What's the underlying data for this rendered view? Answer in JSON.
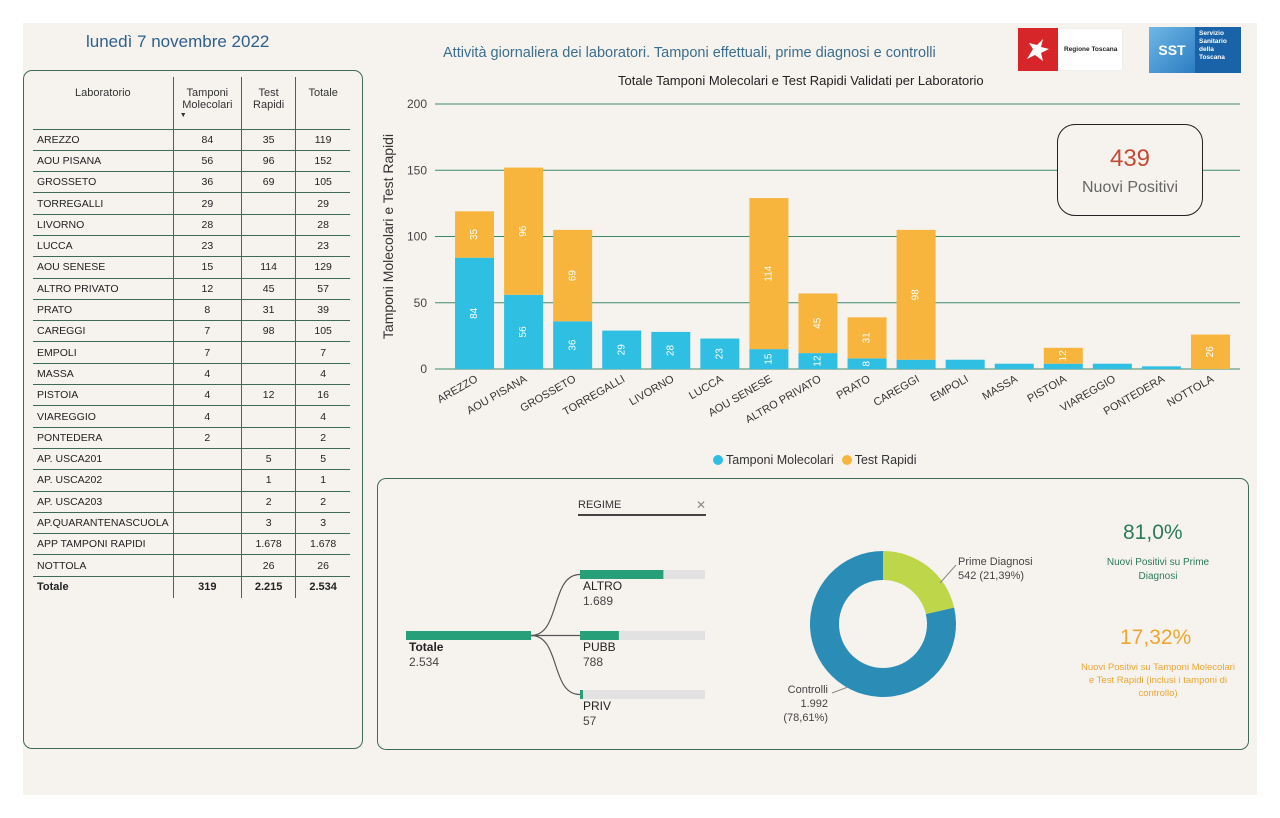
{
  "header": {
    "date": "lunedì 7 novembre 2022",
    "title": "Attività giornaliera dei laboratori. Tamponi effettuali, prime diagnosi e controlli",
    "logo_rt": "Regione Toscana",
    "logo_sst_short": "SST",
    "logo_sst_lines": [
      "Servizio",
      "Sanitario",
      "della",
      "Toscana"
    ]
  },
  "colors": {
    "molecolari": "#2ebfe3",
    "rapidi": "#f7b53d",
    "accent": "#3d6b57",
    "kpi": "#c44a35"
  },
  "table": {
    "headers": {
      "lab": "Laboratorio",
      "mol": "Tamponi Molecolari",
      "rap": "Test Rapidi",
      "tot": "Totale"
    },
    "rows": [
      [
        "AREZZO",
        "84",
        "35",
        "119"
      ],
      [
        "AOU PISANA",
        "56",
        "96",
        "152"
      ],
      [
        "GROSSETO",
        "36",
        "69",
        "105"
      ],
      [
        "TORREGALLI",
        "29",
        "",
        "29"
      ],
      [
        "LIVORNO",
        "28",
        "",
        "28"
      ],
      [
        "LUCCA",
        "23",
        "",
        "23"
      ],
      [
        "AOU SENESE",
        "15",
        "114",
        "129"
      ],
      [
        "ALTRO PRIVATO",
        "12",
        "45",
        "57"
      ],
      [
        "PRATO",
        "8",
        "31",
        "39"
      ],
      [
        "CAREGGI",
        "7",
        "98",
        "105"
      ],
      [
        "EMPOLI",
        "7",
        "",
        "7"
      ],
      [
        "MASSA",
        "4",
        "",
        "4"
      ],
      [
        "PISTOIA",
        "4",
        "12",
        "16"
      ],
      [
        "VIAREGGIO",
        "4",
        "",
        "4"
      ],
      [
        "PONTEDERA",
        "2",
        "",
        "2"
      ],
      [
        "AP. USCA201",
        "",
        "5",
        "5"
      ],
      [
        "AP. USCA202",
        "",
        "1",
        "1"
      ],
      [
        "AP. USCA203",
        "",
        "2",
        "2"
      ],
      [
        "AP.QUARANTENASCUOLA",
        "",
        "3",
        "3"
      ],
      [
        "APP TAMPONI RAPIDI",
        "",
        "1.678",
        "1.678"
      ],
      [
        "NOTTOLA",
        "",
        "26",
        "26"
      ]
    ],
    "total": [
      "Totale",
      "319",
      "2.215",
      "2.534"
    ]
  },
  "chart_data": {
    "type": "bar",
    "stacked": true,
    "title": "Totale Tamponi Molecolari e Test Rapidi Validati per Laboratorio",
    "ylabel": "Tamponi Molecolari e Test Rapidi",
    "ylim": [
      0,
      200
    ],
    "yticks": [
      0,
      50,
      100,
      150,
      200
    ],
    "grid": true,
    "categories": [
      "AREZZO",
      "AOU PISANA",
      "GROSSETO",
      "TORREGALLI",
      "LIVORNO",
      "LUCCA",
      "AOU SENESE",
      "ALTRO PRIVATO",
      "PRATO",
      "CAREGGI",
      "EMPOLI",
      "MASSA",
      "PISTOIA",
      "VIAREGGIO",
      "PONTEDERA",
      "NOTTOLA"
    ],
    "series": [
      {
        "name": "Tamponi Molecolari",
        "values": [
          84,
          56,
          36,
          29,
          28,
          23,
          15,
          12,
          8,
          7,
          7,
          4,
          4,
          4,
          2,
          0
        ],
        "labels": [
          "84",
          "56",
          "36",
          "29",
          "28",
          "23",
          "15",
          "12",
          "8",
          "",
          "",
          "",
          "",
          "",
          "",
          ""
        ]
      },
      {
        "name": "Test Rapidi",
        "values": [
          35,
          96,
          69,
          0,
          0,
          0,
          114,
          45,
          31,
          98,
          0,
          0,
          12,
          0,
          0,
          26
        ],
        "labels": [
          "35",
          "96",
          "69",
          "",
          "",
          "",
          "114",
          "45",
          "31",
          "98",
          "",
          "",
          "12",
          "",
          "",
          "26"
        ]
      }
    ],
    "legend": "bottom-center"
  },
  "kpi": {
    "value": "439",
    "label": "Nuovi Positivi"
  },
  "slicer": {
    "label": "REGIME",
    "clear": "✕"
  },
  "tree": {
    "root": {
      "label": "Totale",
      "value": "2.534",
      "fraction": 1.0
    },
    "children": [
      {
        "label": "ALTRO",
        "value": "1.689",
        "fraction": 0.667
      },
      {
        "label": "PUBB",
        "value": "788",
        "fraction": 0.311
      },
      {
        "label": "PRIV",
        "value": "57",
        "fraction": 0.022
      }
    ]
  },
  "donut": {
    "slices": [
      {
        "name": "Prime Diagnosi",
        "value": 542,
        "label": "542 (21,39%)",
        "color": "#bed64a"
      },
      {
        "name": "Controlli",
        "value": 1992,
        "label": "1.992 (78,61%)",
        "color": "#2b8cb5"
      }
    ]
  },
  "ratios": {
    "r1_value": "81,0%",
    "r1_label": "Nuovi Positivi su Prime Diagnosi",
    "r2_value": "17,32%",
    "r2_label": "Nuovi Positivi su Tamponi Molecolari e Test Rapidi (inclusi i tamponi di controllo)"
  }
}
